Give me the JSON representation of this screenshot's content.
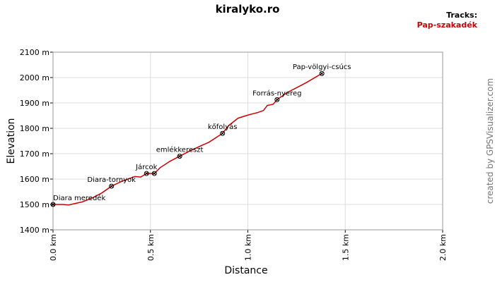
{
  "chart_data": {
    "type": "line",
    "title": "kiralyko.ro",
    "legend_title": "Tracks:",
    "credit": "created by GPSVisualizer.com",
    "xlabel": "Distance",
    "ylabel": "Elevation",
    "xlim": [
      0,
      2.0
    ],
    "ylim": [
      1400,
      2100
    ],
    "xticks": [
      {
        "value": 0,
        "label": "0.0 km"
      },
      {
        "value": 0.5,
        "label": "0.5 km"
      },
      {
        "value": 1.0,
        "label": "1.0 km"
      },
      {
        "value": 1.5,
        "label": "1.5 km"
      },
      {
        "value": 2.0,
        "label": "2.0 km"
      }
    ],
    "yticks": [
      {
        "value": 1400,
        "label": "1400 m"
      },
      {
        "value": 1500,
        "label": "1500 m"
      },
      {
        "value": 1600,
        "label": "1600 m"
      },
      {
        "value": 1700,
        "label": "1700 m"
      },
      {
        "value": 1800,
        "label": "1800 m"
      },
      {
        "value": 1900,
        "label": "1900 m"
      },
      {
        "value": 2000,
        "label": "2000 m"
      },
      {
        "value": 2100,
        "label": "2100 m"
      }
    ],
    "grid": true,
    "series": [
      {
        "name": "Pap-szakadék",
        "color": "#cc0000",
        "x": [
          0,
          0.05,
          0.08,
          0.15,
          0.2,
          0.25,
          0.3,
          0.35,
          0.42,
          0.45,
          0.48,
          0.52,
          0.55,
          0.6,
          0.65,
          0.7,
          0.75,
          0.8,
          0.87,
          0.9,
          0.95,
          1.0,
          1.05,
          1.08,
          1.1,
          1.13,
          1.15,
          1.2,
          1.25,
          1.3,
          1.38
        ],
        "values": [
          1500,
          1500,
          1498,
          1510,
          1525,
          1545,
          1572,
          1590,
          1610,
          1608,
          1622,
          1622,
          1645,
          1670,
          1690,
          1710,
          1728,
          1745,
          1780,
          1810,
          1840,
          1852,
          1862,
          1870,
          1890,
          1895,
          1913,
          1940,
          1960,
          1980,
          2016
        ]
      }
    ],
    "waypoints": {
      "x": [
        0,
        0.3,
        0.48,
        0.52,
        0.65,
        0.87,
        1.15,
        1.38
      ],
      "values": [
        1500,
        1572,
        1622,
        1622,
        1690,
        1780,
        1913,
        2016
      ],
      "labels": [
        "Diara meredék",
        "Diara-tornyok",
        "Járcok",
        null,
        "emlékkereszt",
        "kőfolyás",
        "Forrás-nyereg",
        "Pap-völgyi-csúcs"
      ]
    }
  }
}
